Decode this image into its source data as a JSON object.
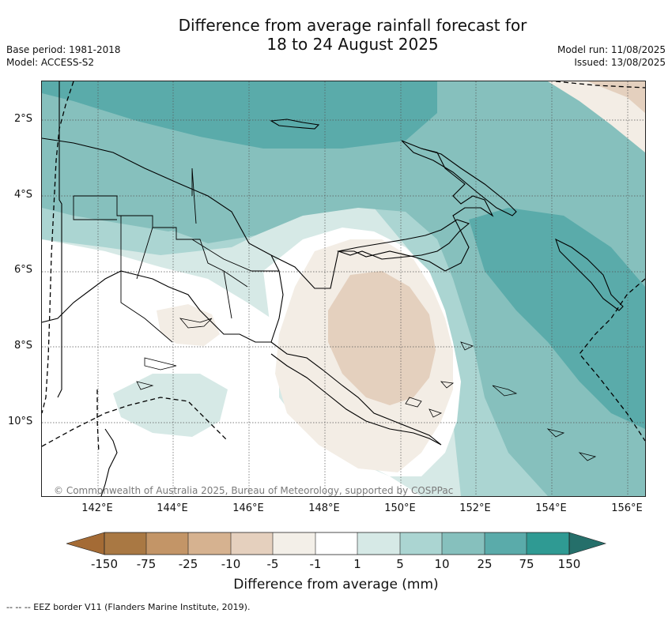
{
  "header": {
    "title_line1": "Difference from average rainfall forecast for",
    "title_line2": "18 to 24 August 2025",
    "base_period": "Base period: 1981-2018",
    "model": "Model: ACCESS-S2",
    "model_run": "Model run: 11/08/2025",
    "issued": "Issued: 13/08/2025"
  },
  "map": {
    "latitude_labels": [
      "2°S",
      "4°S",
      "6°S",
      "8°S",
      "10°S"
    ],
    "longitude_labels": [
      "142°E",
      "144°E",
      "146°E",
      "148°E",
      "150°E",
      "152°E",
      "154°E",
      "156°E"
    ],
    "region": "Papua New Guinea",
    "copyright": "© Commonwealth of Australia 2025, Bureau of Meteorology, supported by COSPPac",
    "colors": {
      "wet_strong": "#5aabaa",
      "wet_medium": "#86c0bd",
      "wet_light": "#abd5d2",
      "wet_faint": "#d6e9e6",
      "neutral": "#ffffff",
      "dry_faint": "#f3ede5",
      "dry_light": "#e4d0be",
      "dry_medium": "#d3b090"
    }
  },
  "colorbar": {
    "title": "Difference from average (mm)",
    "tick_labels": [
      "-150",
      "-75",
      "-25",
      "-10",
      "-5",
      "-1",
      "1",
      "5",
      "10",
      "25",
      "75",
      "150"
    ],
    "segment_colors": [
      "#a46b35",
      "#a97843",
      "#c39567",
      "#d6b290",
      "#e5d0be",
      "#f3efe8",
      "#ffffff",
      "#d6e9e6",
      "#abd5d2",
      "#86c0bd",
      "#5aabaa",
      "#2f9a93",
      "#256f6a"
    ]
  },
  "footnote": "-- -- -- EEZ border V11 (Flanders Marine Institute, 2019)."
}
